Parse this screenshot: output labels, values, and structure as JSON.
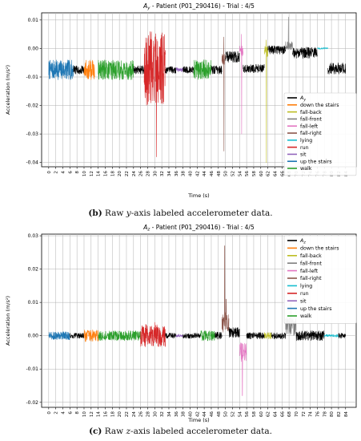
{
  "captions": {
    "b": {
      "tag": "(b)",
      "pre": "Raw ",
      "axis": "y",
      "post": "-axis labeled accelerometer data."
    },
    "c": {
      "tag": "(c)",
      "pre": "Raw ",
      "axis": "z",
      "post": "-axis labeled accelerometer data."
    }
  },
  "chart_data": [
    {
      "type": "line",
      "title_var": "A",
      "title_sub": "y",
      "title_rest": " - Patient (P01_290416)  -  Trial : 4/5",
      "xlabel": "Time (s)",
      "ylabel": "Acceleration (m/s²)",
      "xlim": [
        -2,
        87
      ],
      "ylim": [
        -0.0415,
        0.0125
      ],
      "xticks": [
        0,
        2,
        4,
        6,
        8,
        10,
        12,
        14,
        16,
        18,
        20,
        22,
        24,
        26,
        28,
        30,
        32,
        34,
        36,
        38,
        40,
        42,
        44,
        46,
        48,
        50,
        52,
        54,
        56,
        58,
        60,
        62,
        64,
        66,
        68,
        70,
        72,
        74,
        76,
        78,
        80,
        82,
        84
      ],
      "yticks": [
        -0.04,
        -0.03,
        -0.02,
        -0.01,
        0.0,
        0.01
      ],
      "ytick_labels": [
        "-0.04",
        "-0.03",
        "-0.02",
        "-0.01",
        "0.00",
        "0.01"
      ],
      "grid": true,
      "legend_position": "right",
      "legend": [
        {
          "label": "A",
          "sub": "y",
          "color": "#000000"
        },
        {
          "label": "down the stairs",
          "color": "#ff7f0e"
        },
        {
          "label": "fall-back",
          "color": "#bcbd22"
        },
        {
          "label": "fall-front",
          "color": "#7f7f7f"
        },
        {
          "label": "fall-left",
          "color": "#e377c2"
        },
        {
          "label": "fall-right",
          "color": "#8c564b"
        },
        {
          "label": "lying",
          "color": "#17becf"
        },
        {
          "label": "run",
          "color": "#d62728"
        },
        {
          "label": "sit",
          "color": "#9467bd"
        },
        {
          "label": "up the stairs",
          "color": "#1f77b4"
        },
        {
          "label": "walk",
          "color": "#2ca02c"
        }
      ],
      "segments": [
        {
          "activity": "up the stairs",
          "color": "#1f77b4",
          "t": [
            0,
            7
          ],
          "base": -0.0075,
          "amp": 0.0035,
          "spikes": []
        },
        {
          "activity": "A",
          "color": "#000000",
          "t": [
            7,
            10
          ],
          "base": -0.0075,
          "amp": 0.0015,
          "spikes": []
        },
        {
          "activity": "down the stairs",
          "color": "#ff7f0e",
          "t": [
            10,
            13
          ],
          "base": -0.0075,
          "amp": 0.0035,
          "spikes": []
        },
        {
          "activity": "walk",
          "color": "#2ca02c",
          "t": [
            14,
            24
          ],
          "base": -0.0075,
          "amp": 0.0035,
          "spikes": []
        },
        {
          "activity": "A",
          "color": "#000000",
          "t": [
            24,
            27
          ],
          "base": -0.0075,
          "amp": 0.0015,
          "spikes": []
        },
        {
          "activity": "run",
          "color": "#d62728",
          "t": [
            27,
            33
          ],
          "base": -0.007,
          "amp": 0.013,
          "spikes": [
            {
              "t": 30.5,
              "v": -0.038
            },
            {
              "t": 29,
              "v": 0.005
            }
          ]
        },
        {
          "activity": "A",
          "color": "#000000",
          "t": [
            33,
            36
          ],
          "base": -0.0075,
          "amp": 0.0012,
          "spikes": []
        },
        {
          "activity": "sit",
          "color": "#9467bd",
          "t": [
            36,
            38
          ],
          "base": -0.0075,
          "amp": 0.0008,
          "spikes": []
        },
        {
          "activity": "A",
          "color": "#000000",
          "t": [
            38,
            41
          ],
          "base": -0.0075,
          "amp": 0.0012,
          "spikes": []
        },
        {
          "activity": "walk",
          "color": "#2ca02c",
          "t": [
            41,
            46
          ],
          "base": -0.0075,
          "amp": 0.0035,
          "spikes": []
        },
        {
          "activity": "A",
          "color": "#000000",
          "t": [
            46,
            49
          ],
          "base": -0.0075,
          "amp": 0.0015,
          "spikes": []
        },
        {
          "activity": "fall-right",
          "color": "#8c564b",
          "t": [
            49,
            50
          ],
          "base": -0.004,
          "amp": 0.002,
          "spikes": [
            {
              "t": 49.5,
              "v": 0.004
            },
            {
              "t": 49.6,
              "v": -0.036
            }
          ]
        },
        {
          "activity": "A",
          "color": "#000000",
          "t": [
            50,
            54
          ],
          "base": -0.003,
          "amp": 0.002,
          "spikes": []
        },
        {
          "activity": "fall-left",
          "color": "#e377c2",
          "t": [
            54,
            55
          ],
          "base": -0.001,
          "amp": 0.002,
          "spikes": [
            {
              "t": 54.5,
              "v": 0.005
            },
            {
              "t": 54.6,
              "v": -0.03
            }
          ]
        },
        {
          "activity": "A",
          "color": "#000000",
          "t": [
            55,
            61
          ],
          "base": -0.007,
          "amp": 0.0015,
          "spikes": []
        },
        {
          "activity": "fall-back",
          "color": "#bcbd22",
          "t": [
            61,
            62
          ],
          "base": -0.001,
          "amp": 0.002,
          "spikes": [
            {
              "t": 61.5,
              "v": 0.003
            },
            {
              "t": 61.6,
              "v": -0.04
            }
          ]
        },
        {
          "activity": "A",
          "color": "#000000",
          "t": [
            62,
            67
          ],
          "base": -0.0005,
          "amp": 0.0015,
          "spikes": []
        },
        {
          "activity": "fall-front",
          "color": "#7f7f7f",
          "t": [
            67,
            69
          ],
          "base": 0.001,
          "amp": 0.0015,
          "spikes": [
            {
              "t": 67.8,
              "v": 0.011
            }
          ]
        },
        {
          "activity": "A",
          "color": "#000000",
          "t": [
            69,
            76
          ],
          "base": -0.0015,
          "amp": 0.002,
          "spikes": []
        },
        {
          "activity": "lying",
          "color": "#17becf",
          "t": [
            76,
            79
          ],
          "base": 0.0,
          "amp": 0.0003,
          "spikes": []
        },
        {
          "activity": "A",
          "color": "#000000",
          "t": [
            79,
            84
          ],
          "base": -0.007,
          "amp": 0.002,
          "spikes": []
        }
      ]
    },
    {
      "type": "line",
      "title_var": "A",
      "title_sub": "z",
      "title_rest": " - Patient (P01_290416)  -  Trial : 4/5",
      "xlabel": "Time (s)",
      "ylabel": "Acceleration (m/s²)",
      "xlim": [
        -2,
        87
      ],
      "ylim": [
        -0.0215,
        0.0305
      ],
      "xticks": [
        0,
        2,
        4,
        6,
        8,
        10,
        12,
        14,
        16,
        18,
        20,
        22,
        24,
        26,
        28,
        30,
        32,
        34,
        36,
        38,
        40,
        42,
        44,
        46,
        48,
        50,
        52,
        54,
        56,
        58,
        60,
        62,
        64,
        66,
        68,
        70,
        72,
        74,
        76,
        78,
        80,
        82,
        84
      ],
      "yticks": [
        -0.02,
        -0.01,
        0.0,
        0.01,
        0.02,
        0.03
      ],
      "ytick_labels": [
        "-0.02",
        "-0.01",
        "0.00",
        "0.01",
        "0.02",
        "0.03"
      ],
      "grid": true,
      "legend_position": "top-right",
      "legend": [
        {
          "label": "A",
          "sub": "z",
          "color": "#000000"
        },
        {
          "label": "down the stairs",
          "color": "#ff7f0e"
        },
        {
          "label": "fall-back",
          "color": "#bcbd22"
        },
        {
          "label": "fall-front",
          "color": "#7f7f7f"
        },
        {
          "label": "fall-left",
          "color": "#e377c2"
        },
        {
          "label": "fall-right",
          "color": "#8c564b"
        },
        {
          "label": "lying",
          "color": "#17becf"
        },
        {
          "label": "run",
          "color": "#d62728"
        },
        {
          "label": "sit",
          "color": "#9467bd"
        },
        {
          "label": "up the stairs",
          "color": "#1f77b4"
        },
        {
          "label": "walk",
          "color": "#2ca02c"
        }
      ],
      "segments": [
        {
          "activity": "up the stairs",
          "color": "#1f77b4",
          "t": [
            0,
            6
          ],
          "base": 0.0,
          "amp": 0.0012,
          "spikes": []
        },
        {
          "activity": "A",
          "color": "#000000",
          "t": [
            6,
            10
          ],
          "base": 0.0,
          "amp": 0.0008,
          "spikes": []
        },
        {
          "activity": "down the stairs",
          "color": "#ff7f0e",
          "t": [
            10,
            14
          ],
          "base": 0.0,
          "amp": 0.0018,
          "spikes": []
        },
        {
          "activity": "walk",
          "color": "#2ca02c",
          "t": [
            14,
            26
          ],
          "base": 0.0,
          "amp": 0.0015,
          "spikes": []
        },
        {
          "activity": "run",
          "color": "#d62728",
          "t": [
            26,
            33
          ],
          "base": 0.0,
          "amp": 0.0035,
          "spikes": [
            {
              "t": 30,
              "v": 0.004
            }
          ]
        },
        {
          "activity": "A",
          "color": "#000000",
          "t": [
            33,
            36
          ],
          "base": 0.0,
          "amp": 0.0008,
          "spikes": []
        },
        {
          "activity": "sit",
          "color": "#9467bd",
          "t": [
            36,
            38
          ],
          "base": 0.0,
          "amp": 0.0005,
          "spikes": []
        },
        {
          "activity": "A",
          "color": "#000000",
          "t": [
            38,
            43
          ],
          "base": 0.0,
          "amp": 0.0008,
          "spikes": []
        },
        {
          "activity": "walk",
          "color": "#2ca02c",
          "t": [
            43,
            47
          ],
          "base": 0.0,
          "amp": 0.0015,
          "spikes": []
        },
        {
          "activity": "A",
          "color": "#000000",
          "t": [
            47,
            49
          ],
          "base": 0.0,
          "amp": 0.0012,
          "spikes": []
        },
        {
          "activity": "fall-right",
          "color": "#8c564b",
          "t": [
            49,
            51
          ],
          "base": 0.004,
          "amp": 0.003,
          "spikes": [
            {
              "t": 49.8,
              "v": 0.027
            },
            {
              "t": 50.2,
              "v": 0.011
            }
          ]
        },
        {
          "activity": "A",
          "color": "#000000",
          "t": [
            51,
            54
          ],
          "base": 0.001,
          "amp": 0.0015,
          "spikes": []
        },
        {
          "activity": "fall-left",
          "color": "#e377c2",
          "t": [
            54,
            56
          ],
          "base": -0.005,
          "amp": 0.003,
          "spikes": [
            {
              "t": 54.8,
              "v": -0.018
            }
          ]
        },
        {
          "activity": "A",
          "color": "#000000",
          "t": [
            56,
            61
          ],
          "base": 0.0,
          "amp": 0.001,
          "spikes": []
        },
        {
          "activity": "fall-back",
          "color": "#bcbd22",
          "t": [
            61,
            63
          ],
          "base": 0.0,
          "amp": 0.001,
          "spikes": []
        },
        {
          "activity": "A",
          "color": "#000000",
          "t": [
            63,
            67
          ],
          "base": 0.0,
          "amp": 0.001,
          "spikes": []
        },
        {
          "activity": "fall-front",
          "color": "#7f7f7f",
          "t": [
            67,
            70
          ],
          "base": 0.003,
          "amp": 0.003,
          "spikes": [
            {
              "t": 68.5,
              "v": 0.01
            }
          ]
        },
        {
          "activity": "A",
          "color": "#000000",
          "t": [
            70,
            78
          ],
          "base": 0.0,
          "amp": 0.0015,
          "spikes": []
        },
        {
          "activity": "lying",
          "color": "#17becf",
          "t": [
            78,
            82
          ],
          "base": 0.0,
          "amp": 0.0004,
          "spikes": []
        },
        {
          "activity": "A",
          "color": "#000000",
          "t": [
            82,
            84
          ],
          "base": 0.0,
          "amp": 0.0008,
          "spikes": []
        }
      ]
    }
  ]
}
